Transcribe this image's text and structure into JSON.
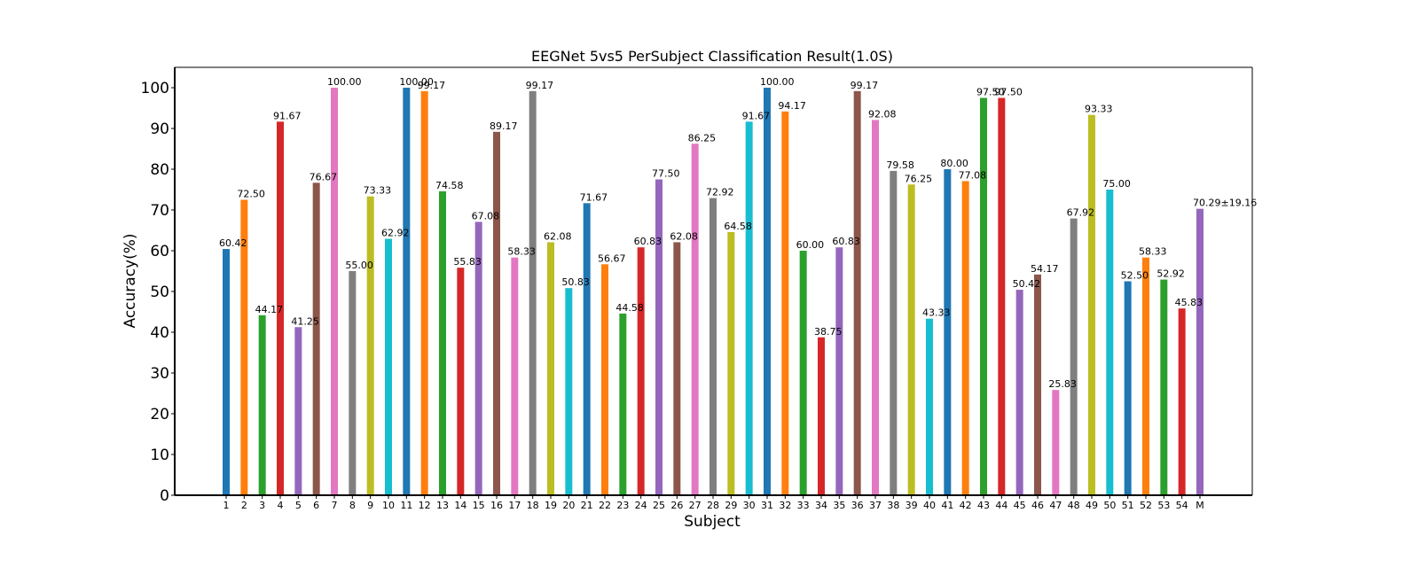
{
  "chart_data": {
    "type": "bar",
    "title": "EEGNet 5vs5 PerSubject Classification Result(1.0S)",
    "xlabel": "Subject",
    "ylabel": "Accuracy(%)",
    "ylim": [
      0,
      105
    ],
    "yticks": [
      0,
      10,
      20,
      30,
      40,
      50,
      60,
      70,
      80,
      90,
      100
    ],
    "grid": false,
    "categories": [
      "1",
      "2",
      "3",
      "4",
      "5",
      "6",
      "7",
      "8",
      "9",
      "10",
      "11",
      "12",
      "13",
      "14",
      "15",
      "16",
      "17",
      "18",
      "19",
      "20",
      "21",
      "22",
      "23",
      "24",
      "25",
      "26",
      "27",
      "28",
      "29",
      "30",
      "31",
      "32",
      "33",
      "34",
      "35",
      "36",
      "37",
      "38",
      "39",
      "40",
      "41",
      "42",
      "43",
      "44",
      "45",
      "46",
      "47",
      "48",
      "49",
      "50",
      "51",
      "52",
      "53",
      "54",
      "M"
    ],
    "values": [
      60.42,
      72.5,
      44.17,
      91.67,
      41.25,
      76.67,
      100.0,
      55.0,
      73.33,
      62.92,
      100.0,
      99.17,
      74.58,
      55.83,
      67.08,
      89.17,
      58.33,
      99.17,
      62.08,
      50.83,
      71.67,
      56.67,
      44.58,
      60.83,
      77.5,
      62.08,
      86.25,
      72.92,
      64.58,
      91.67,
      100.0,
      94.17,
      60.0,
      38.75,
      60.83,
      99.17,
      92.08,
      79.58,
      76.25,
      43.33,
      80.0,
      77.08,
      97.5,
      97.5,
      50.42,
      54.17,
      25.83,
      67.92,
      93.33,
      75.0,
      52.5,
      58.33,
      52.92,
      45.83,
      70.29
    ],
    "data_labels": [
      "60.42",
      "72.50",
      "44.17",
      "91.67",
      "41.25",
      "76.67",
      "100.00",
      "55.00",
      "73.33",
      "62.92",
      "100.00",
      "99.17",
      "74.58",
      "55.83",
      "67.08",
      "89.17",
      "58.33",
      "99.17",
      "62.08",
      "50.83",
      "71.67",
      "56.67",
      "44.58",
      "60.83",
      "77.50",
      "62.08",
      "86.25",
      "72.92",
      "64.58",
      "91.67",
      "100.00",
      "94.17",
      "60.00",
      "38.75",
      "60.83",
      "99.17",
      "92.08",
      "79.58",
      "76.25",
      "43.33",
      "80.00",
      "77.08",
      "97.50",
      "97.50",
      "50.42",
      "54.17",
      "25.83",
      "67.92",
      "93.33",
      "75.00",
      "52.50",
      "58.33",
      "52.92",
      "45.83",
      "70.29±19.16"
    ],
    "mean_label_color": "#ff0000",
    "palette": [
      "#1f77b4",
      "#ff7f0e",
      "#2ca02c",
      "#d62728",
      "#9467bd",
      "#8c564b",
      "#e377c2",
      "#7f7f7f",
      "#bcbd22",
      "#17becf"
    ]
  }
}
